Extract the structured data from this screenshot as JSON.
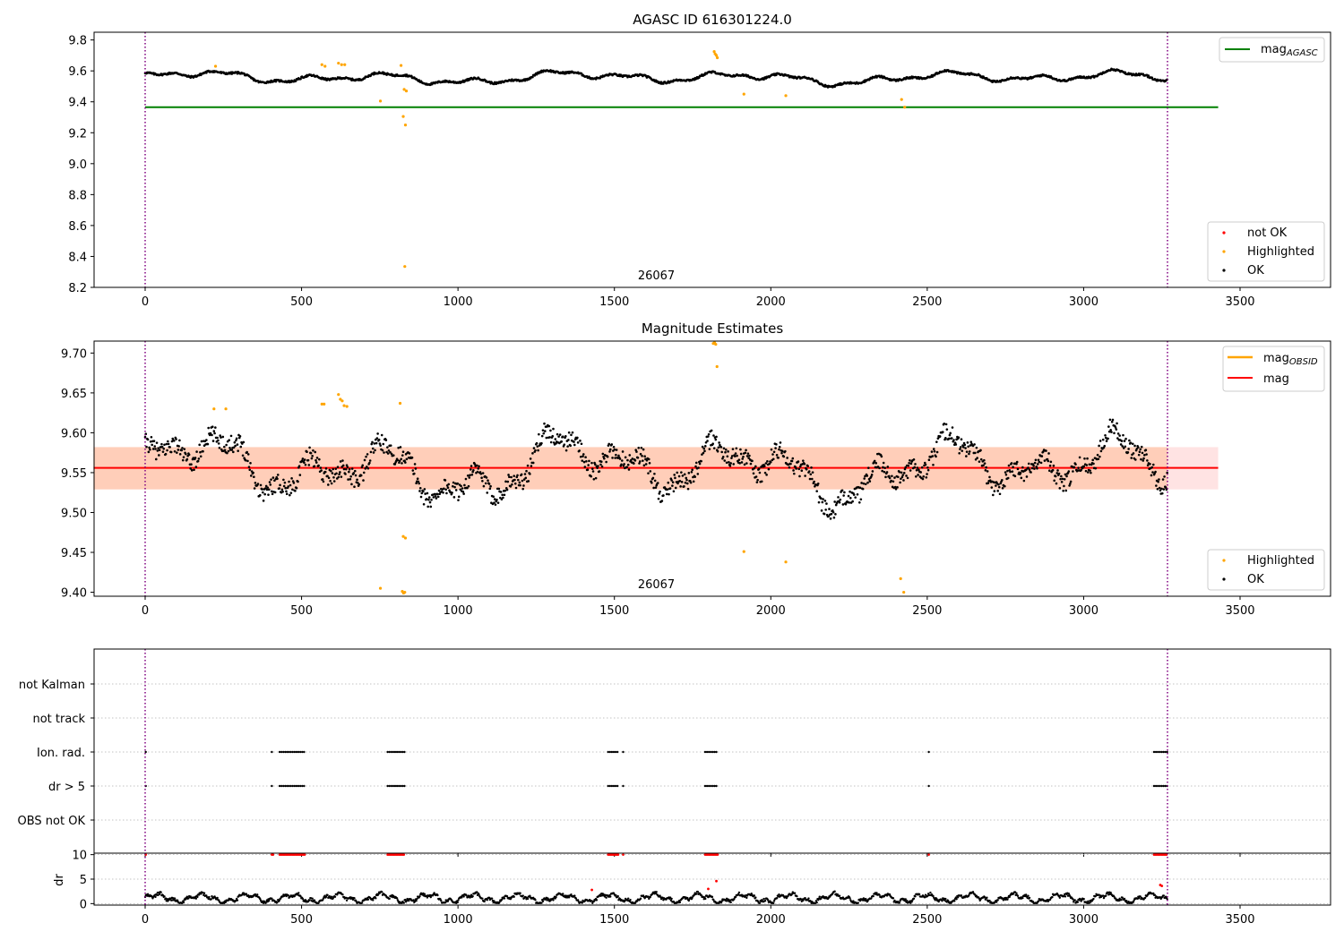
{
  "chart_data": [
    {
      "type": "scatter",
      "title": "AGASC ID 616301224.0",
      "ylim": [
        8.2,
        9.85
      ],
      "xlim": [
        -165,
        3785
      ],
      "xticks": [
        0,
        500,
        1000,
        1500,
        2000,
        2500,
        3000,
        3500
      ],
      "yticks": [
        "8.2",
        "8.4",
        "8.6",
        "8.8",
        "9.0",
        "9.2",
        "9.4",
        "9.6",
        "9.8"
      ],
      "obsid_label": "26067",
      "obsid_bounds": [
        0,
        3268
      ],
      "agasc_mag": 9.365,
      "legend_upper": {
        "placement": "upper right",
        "label": "mag",
        "subscript": "AGASC",
        "color": "#008000"
      },
      "legend_lower": {
        "placement": "lower right",
        "entries": [
          {
            "label": "not OK",
            "color": "#ff0000"
          },
          {
            "label": "Highlighted",
            "color": "#ffa500"
          },
          {
            "label": "OK",
            "color": "#000000"
          }
        ]
      },
      "highlighted_points": [
        [
          225,
          9.63
        ],
        [
          565,
          9.64
        ],
        [
          575,
          9.63
        ],
        [
          618,
          9.65
        ],
        [
          628,
          9.64
        ],
        [
          638,
          9.64
        ],
        [
          752,
          9.405
        ],
        [
          818,
          9.635
        ],
        [
          825,
          9.305
        ],
        [
          828,
          9.48
        ],
        [
          830,
          8.335
        ],
        [
          832,
          9.25
        ],
        [
          835,
          9.47
        ],
        [
          1819,
          9.725
        ],
        [
          1822,
          9.71
        ],
        [
          1826,
          9.7
        ],
        [
          1829,
          9.685
        ],
        [
          1914,
          9.45
        ],
        [
          2048,
          9.44
        ],
        [
          2418,
          9.415
        ],
        [
          2428,
          9.365
        ]
      ]
    },
    {
      "type": "scatter",
      "title": "Magnitude Estimates",
      "ylim": [
        9.395,
        9.715
      ],
      "xlim": [
        -165,
        3785
      ],
      "xticks": [
        0,
        500,
        1000,
        1500,
        2000,
        2500,
        3000,
        3500
      ],
      "yticks": [
        "9.40",
        "9.45",
        "9.50",
        "9.55",
        "9.60",
        "9.65",
        "9.70"
      ],
      "obsid_label": "26067",
      "obsid_bounds": [
        0,
        3268
      ],
      "mean_mag": 9.556,
      "band": [
        9.529,
        9.582
      ],
      "legend_upper": {
        "placement": "upper right",
        "entries": [
          {
            "label": "mag",
            "subscript": "OBSID",
            "color": "#ffa500"
          },
          {
            "label": "mag",
            "subscript": "",
            "color": "#ff0000"
          }
        ]
      },
      "legend_lower": {
        "placement": "lower right",
        "entries": [
          {
            "label": "Highlighted",
            "color": "#ffa500"
          },
          {
            "label": "OK",
            "color": "#000000"
          }
        ]
      },
      "highlighted_points": [
        [
          220,
          9.63
        ],
        [
          258,
          9.63
        ],
        [
          565,
          9.636
        ],
        [
          572,
          9.636
        ],
        [
          618,
          9.648
        ],
        [
          624,
          9.642
        ],
        [
          630,
          9.64
        ],
        [
          636,
          9.634
        ],
        [
          645,
          9.633
        ],
        [
          815,
          9.637
        ],
        [
          825,
          9.47
        ],
        [
          832,
          9.468
        ],
        [
          752,
          9.405
        ],
        [
          822,
          9.401
        ],
        [
          826,
          9.399
        ],
        [
          830,
          9.4
        ],
        [
          1816,
          9.712
        ],
        [
          1820,
          9.713
        ],
        [
          1824,
          9.711
        ],
        [
          1828,
          9.683
        ],
        [
          1914,
          9.451
        ],
        [
          2048,
          9.438
        ],
        [
          2415,
          9.417
        ],
        [
          2425,
          9.4
        ]
      ]
    },
    {
      "type": "scatter",
      "title": "",
      "categories": [
        "not Kalman",
        "not track",
        "Ion. rad.",
        "dr > 5",
        "OBS not OK"
      ],
      "flag_segments": [
        [
          405,
          410
        ],
        [
          430,
          510
        ],
        [
          775,
          830
        ],
        [
          1480,
          1515
        ],
        [
          1528,
          1530
        ],
        [
          1790,
          1830
        ],
        [
          2505,
          2507
        ],
        [
          3225,
          3268
        ]
      ],
      "flag_start_dot": 2,
      "xticks": [
        0,
        500,
        1000,
        1500,
        2000,
        2500,
        3000,
        3500
      ]
    },
    {
      "type": "scatter",
      "ylabel": "dr",
      "ylim": [
        -0.3,
        10.3
      ],
      "yticks": [
        "0",
        "5",
        "10"
      ],
      "xticks": [
        0,
        500,
        1000,
        1500,
        2000,
        2500,
        3000,
        3500
      ],
      "saturated_value": 10,
      "red_points": [
        [
          1428,
          2.8
        ],
        [
          1800,
          3.0
        ],
        [
          3245,
          3.8
        ],
        [
          3250,
          3.6
        ],
        [
          1826,
          4.6
        ]
      ]
    }
  ]
}
